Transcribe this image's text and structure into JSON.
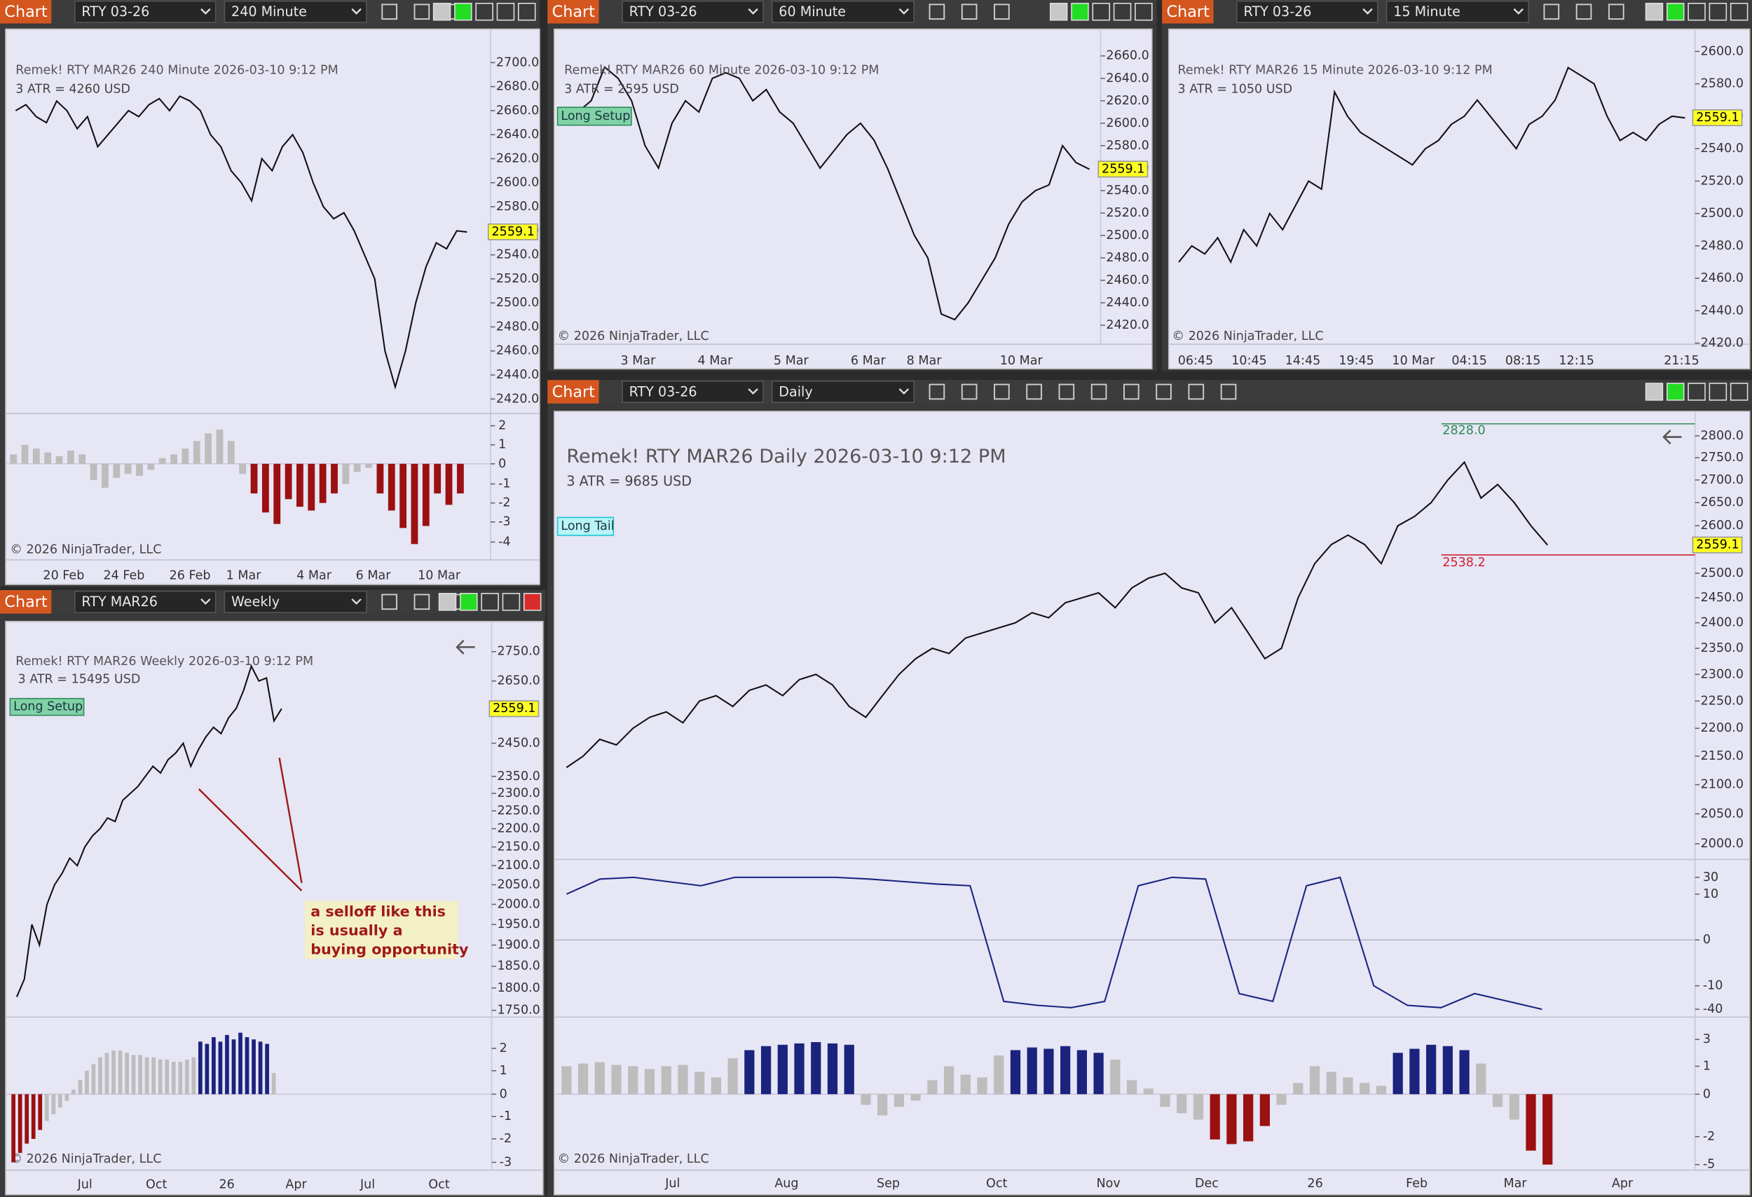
{
  "windows": [
    {
      "tab": "Chart",
      "instrument": "RTY 03-26",
      "interval": "240 Minute",
      "title": "Remek!  RTY MAR26  240 Minute  2026-03-10 9:12 PM",
      "atr": "3 ATR = 4260 USD",
      "price_ticks": [
        "2700.0",
        "2680.0",
        "2660.0",
        "2640.0",
        "2620.0",
        "2600.0",
        "2580.0",
        "2560.0",
        "2540.0",
        "2520.0",
        "2500.0",
        "2480.0",
        "2460.0",
        "2440.0",
        "2420.0"
      ],
      "log_scale": false,
      "last_price": "2559.1",
      "prices": [
        2660,
        2665,
        2655,
        2650,
        2668,
        2660,
        2645,
        2655,
        2630,
        2640,
        2650,
        2660,
        2655,
        2665,
        2670,
        2660,
        2672,
        2668,
        2660,
        2640,
        2630,
        2610,
        2600,
        2585,
        2620,
        2610,
        2630,
        2640,
        2625,
        2600,
        2580,
        2570,
        2575,
        2560,
        2540,
        2520,
        2460,
        2430,
        2460,
        2500,
        2530,
        2550,
        2545,
        2560,
        2559
      ],
      "x_labels": [
        "20 Feb",
        "24 Feb",
        "26 Feb",
        "1 Mar",
        "4 Mar",
        "6 Mar",
        "10 Mar"
      ],
      "copyright": "© 2026 NinjaTrader, LLC",
      "indicator_ticks": [
        2,
        1,
        0,
        -1,
        -2,
        -3,
        -4
      ],
      "histogram": [
        0.5,
        1,
        0.8,
        0.6,
        0.4,
        0.7,
        0.5,
        -0.8,
        -1.2,
        -0.7,
        -0.5,
        -0.6,
        -0.3,
        0.3,
        0.5,
        0.8,
        1.2,
        1.6,
        1.8,
        1.2,
        -0.5,
        -1.5,
        -2.5,
        -3.1,
        -1.8,
        -2.2,
        -2.4,
        -2.0,
        -1.5,
        -1.0,
        -0.4,
        -0.2,
        -1.5,
        -2.4,
        -3.3,
        -4.1,
        -3.2,
        -1.5,
        -2.1,
        -1.5
      ]
    },
    {
      "tab": "Chart",
      "instrument": "RTY 03-26",
      "interval": "60 Minute",
      "title": "Remek!  RTY MAR26  60 Minute  2026-03-10 9:12 PM",
      "atr": "3 ATR = 2595 USD",
      "setup_label": "Long Setup",
      "price_ticks": [
        "2660.0",
        "2640.0",
        "2620.0",
        "2600.0",
        "2580.0",
        "2560.0",
        "2540.0",
        "2520.0",
        "2500.0",
        "2480.0",
        "2460.0",
        "2440.0",
        "2420.0"
      ],
      "log_scale": false,
      "last_price": "2559.1",
      "prices": [
        2600,
        2610,
        2620,
        2650,
        2640,
        2620,
        2580,
        2560,
        2600,
        2620,
        2610,
        2640,
        2645,
        2640,
        2620,
        2630,
        2610,
        2600,
        2580,
        2560,
        2575,
        2590,
        2600,
        2585,
        2560,
        2530,
        2500,
        2480,
        2430,
        2425,
        2440,
        2460,
        2480,
        2510,
        2530,
        2540,
        2545,
        2580,
        2565,
        2559
      ],
      "x_labels": [
        "3 Mar",
        "4 Mar",
        "5 Mar",
        "6 Mar",
        "8 Mar",
        "10 Mar"
      ],
      "copyright": "© 2026 NinjaTrader, LLC"
    },
    {
      "tab": "Chart",
      "instrument": "RTY 03-26",
      "interval": "15 Minute",
      "title": "Remek!  RTY MAR26  15 Minute  2026-03-10 9:12 PM",
      "atr": "3 ATR = 1050 USD",
      "price_ticks": [
        "2600.0",
        "2580.0",
        "2560.0",
        "2540.0",
        "2520.0",
        "2500.0",
        "2480.0",
        "2460.0",
        "2440.0",
        "2420.0"
      ],
      "log_scale": false,
      "last_price": "2559.1",
      "prices": [
        2470,
        2480,
        2475,
        2485,
        2470,
        2490,
        2480,
        2500,
        2490,
        2505,
        2520,
        2515,
        2575,
        2560,
        2550,
        2545,
        2540,
        2535,
        2530,
        2540,
        2545,
        2555,
        2560,
        2570,
        2560,
        2550,
        2540,
        2555,
        2560,
        2570,
        2590,
        2585,
        2580,
        2560,
        2545,
        2550,
        2545,
        2555,
        2560,
        2559
      ],
      "x_labels": [
        "06:45",
        "10:45",
        "14:45",
        "19:45",
        "10 Mar",
        "04:15",
        "08:15",
        "12:15",
        "21:15"
      ],
      "copyright": "© 2026 NinjaTrader, LLC"
    },
    {
      "tab": "Chart",
      "instrument": "RTY MAR26",
      "interval": "Weekly",
      "title": "Remek!  RTY MAR26  Weekly  2026-03-10 9:12 PM",
      "atr": "3 ATR = 15495 USD",
      "setup_label": "Long Setup",
      "price_ticks": [
        "2750.0",
        "2650.0",
        "2450.0",
        "2350.0",
        "2300.0",
        "2250.0",
        "2200.0",
        "2150.0",
        "2100.0",
        "2050.0",
        "2000.0",
        "1950.0",
        "1900.0",
        "1850.0",
        "1800.0",
        "1750.0"
      ],
      "log_scale": true,
      "last_price": "2559.1",
      "prices": [
        1780,
        1820,
        1950,
        1900,
        2000,
        2050,
        2080,
        2120,
        2100,
        2150,
        2180,
        2200,
        2230,
        2220,
        2280,
        2300,
        2320,
        2350,
        2380,
        2360,
        2400,
        2420,
        2450,
        2380,
        2430,
        2470,
        2500,
        2480,
        2530,
        2560,
        2620,
        2700,
        2650,
        2660,
        2520,
        2559
      ],
      "x_labels": [
        "Jul",
        "Oct",
        "26",
        "Apr",
        "Jul",
        "Oct"
      ],
      "copyright": "© 2026 NinjaTrader, LLC",
      "annotation": [
        "a selloff like this",
        "is usually a",
        "buying opportunity"
      ],
      "indicator_ticks": [
        2,
        1,
        0,
        -1,
        -2,
        -3
      ],
      "histogram": [
        -3,
        -2.6,
        -2.2,
        -2,
        -1.6,
        -1.2,
        -0.9,
        -0.6,
        -0.3,
        0.2,
        0.6,
        1.0,
        1.3,
        1.6,
        1.8,
        1.9,
        1.9,
        1.8,
        1.7,
        1.7,
        1.6,
        1.6,
        1.5,
        1.5,
        1.4,
        1.4,
        1.5,
        1.6,
        2.3,
        2.2,
        2.5,
        2.3,
        2.6,
        2.4,
        2.7,
        2.5,
        2.4,
        2.3,
        2.2,
        0.9
      ]
    },
    {
      "tab": "Chart",
      "instrument": "RTY 03-26",
      "interval": "Daily",
      "title": "Remek!  RTY MAR26  Daily  2026-03-10 9:12 PM",
      "atr": "3 ATR = 9685 USD",
      "setup_label": "Long Tail",
      "price_ticks": [
        "2800.0",
        "2750.0",
        "2700.0",
        "2650.0",
        "2600.0",
        "2500.0",
        "2450.0",
        "2400.0",
        "2350.0",
        "2300.0",
        "2250.0",
        "2200.0",
        "2150.0",
        "2100.0",
        "2050.0",
        "2000.0"
      ],
      "log_scale": true,
      "last_price": "2559.1",
      "levels": [
        {
          "label": "2828.0",
          "color": "#2e8b57"
        },
        {
          "label": "2538.2",
          "color": "#d02030"
        }
      ],
      "prices": [
        2130,
        2150,
        2180,
        2170,
        2200,
        2220,
        2230,
        2210,
        2250,
        2260,
        2240,
        2270,
        2280,
        2260,
        2290,
        2300,
        2280,
        2240,
        2220,
        2260,
        2300,
        2330,
        2350,
        2340,
        2370,
        2380,
        2390,
        2400,
        2420,
        2410,
        2440,
        2450,
        2460,
        2430,
        2470,
        2490,
        2500,
        2470,
        2460,
        2400,
        2430,
        2380,
        2330,
        2350,
        2450,
        2520,
        2560,
        2580,
        2560,
        2520,
        2600,
        2620,
        2650,
        2700,
        2740,
        2660,
        2690,
        2650,
        2600,
        2559
      ],
      "x_labels": [
        "Jul",
        "Aug",
        "Sep",
        "Oct",
        "Nov",
        "Dec",
        "26",
        "Feb",
        "Mar",
        "Apr"
      ],
      "copyright": "© 2026 NinjaTrader, LLC",
      "oscillator_ticks": [
        30,
        10,
        0,
        -10,
        -40
      ],
      "oscillator_line": [
        10,
        28,
        30,
        25,
        20,
        30,
        30,
        30,
        30,
        28,
        25,
        22,
        20,
        -30,
        -35,
        -38,
        -30,
        20,
        30,
        28,
        -20,
        -30,
        20,
        30,
        -10,
        -35,
        -38,
        -20,
        -30,
        -40
      ],
      "indicator_ticks": [
        3,
        1,
        0,
        -2,
        -5
      ],
      "histogram": [
        1,
        1.2,
        1.3,
        1.1,
        1,
        0.9,
        1,
        1.1,
        0.8,
        0.6,
        1.6,
        2.2,
        2.5,
        2.6,
        2.7,
        2.8,
        2.7,
        2.6,
        -0.5,
        -1,
        -0.6,
        -0.3,
        0.5,
        1,
        0.7,
        0.6,
        1.8,
        2.2,
        2.4,
        2.3,
        2.5,
        2.2,
        2.0,
        1.5,
        0.5,
        0.2,
        -0.6,
        -0.9,
        -1.2,
        -2.3,
        -2.8,
        -2.5,
        -1.5,
        -0.5,
        0.4,
        1.0,
        0.8,
        0.6,
        0.4,
        0.3,
        2,
        2.3,
        2.6,
        2.5,
        2.2,
        1.2,
        -0.6,
        -1.2,
        -3.5,
        -5
      ]
    }
  ]
}
